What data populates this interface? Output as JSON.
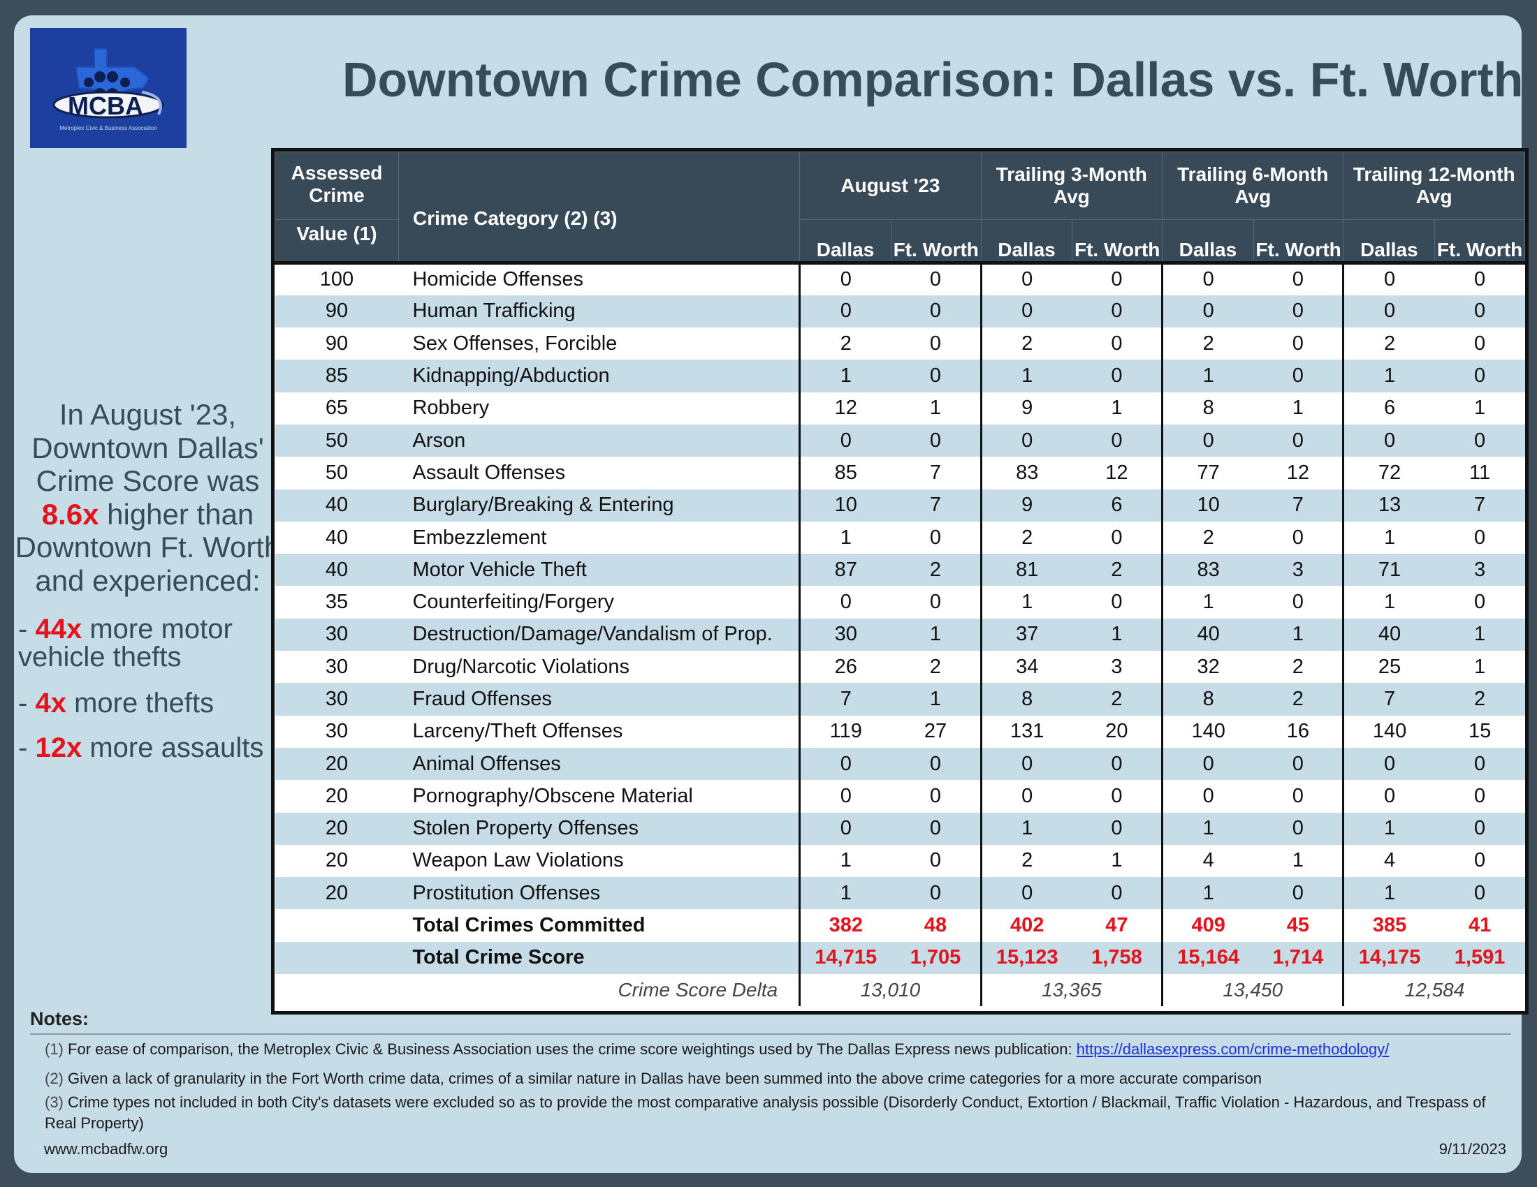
{
  "logo": {
    "text": "MCBA",
    "tagline": "Metroplex Civic & Business Association"
  },
  "title": "Downtown Crime Comparison: Dallas vs. Ft. Worth",
  "callout": {
    "lead_pre": "In August '23, Downtown Dallas' Crime Score was",
    "lead_multiplier": "8.6x",
    "lead_post": "higher than Downtown Ft. Worth and experienced:",
    "bullets": [
      {
        "dash": "-",
        "mult": "44x",
        "text": "more motor vehicle thefts"
      },
      {
        "dash": "-",
        "mult": "4x",
        "text": "more thefts"
      },
      {
        "dash": "-",
        "mult": "12x",
        "text": "more assaults"
      }
    ]
  },
  "table": {
    "head": {
      "value_top": "Assessed Crime",
      "value_bottom": "Value (1)",
      "category": "Crime Category (2) (3)",
      "periods": [
        "August '23",
        "Trailing 3-Month Avg",
        "Trailing 6-Month Avg",
        "Trailing 12-Month Avg"
      ],
      "dallas": "Dallas",
      "ftworth": "Ft. Worth"
    },
    "rows": [
      {
        "value": "100",
        "category": "Homicide Offenses",
        "cells": [
          "0",
          "0",
          "0",
          "0",
          "0",
          "0",
          "0",
          "0"
        ]
      },
      {
        "value": "90",
        "category": "Human Trafficking",
        "cells": [
          "0",
          "0",
          "0",
          "0",
          "0",
          "0",
          "0",
          "0"
        ]
      },
      {
        "value": "90",
        "category": "Sex Offenses, Forcible",
        "cells": [
          "2",
          "0",
          "2",
          "0",
          "2",
          "0",
          "2",
          "0"
        ]
      },
      {
        "value": "85",
        "category": "Kidnapping/Abduction",
        "cells": [
          "1",
          "0",
          "1",
          "0",
          "1",
          "0",
          "1",
          "0"
        ]
      },
      {
        "value": "65",
        "category": "Robbery",
        "cells": [
          "12",
          "1",
          "9",
          "1",
          "8",
          "1",
          "6",
          "1"
        ]
      },
      {
        "value": "50",
        "category": "Arson",
        "cells": [
          "0",
          "0",
          "0",
          "0",
          "0",
          "0",
          "0",
          "0"
        ]
      },
      {
        "value": "50",
        "category": "Assault Offenses",
        "cells": [
          "85",
          "7",
          "83",
          "12",
          "77",
          "12",
          "72",
          "11"
        ]
      },
      {
        "value": "40",
        "category": "Burglary/Breaking & Entering",
        "cells": [
          "10",
          "7",
          "9",
          "6",
          "10",
          "7",
          "13",
          "7"
        ]
      },
      {
        "value": "40",
        "category": "Embezzlement",
        "cells": [
          "1",
          "0",
          "2",
          "0",
          "2",
          "0",
          "1",
          "0"
        ]
      },
      {
        "value": "40",
        "category": "Motor Vehicle Theft",
        "cells": [
          "87",
          "2",
          "81",
          "2",
          "83",
          "3",
          "71",
          "3"
        ]
      },
      {
        "value": "35",
        "category": "Counterfeiting/Forgery",
        "cells": [
          "0",
          "0",
          "1",
          "0",
          "1",
          "0",
          "1",
          "0"
        ]
      },
      {
        "value": "30",
        "category": "Destruction/Damage/Vandalism of Prop.",
        "cells": [
          "30",
          "1",
          "37",
          "1",
          "40",
          "1",
          "40",
          "1"
        ]
      },
      {
        "value": "30",
        "category": "Drug/Narcotic Violations",
        "cells": [
          "26",
          "2",
          "34",
          "3",
          "32",
          "2",
          "25",
          "1"
        ]
      },
      {
        "value": "30",
        "category": "Fraud Offenses",
        "cells": [
          "7",
          "1",
          "8",
          "2",
          "8",
          "2",
          "7",
          "2"
        ]
      },
      {
        "value": "30",
        "category": "Larceny/Theft Offenses",
        "cells": [
          "119",
          "27",
          "131",
          "20",
          "140",
          "16",
          "140",
          "15"
        ]
      },
      {
        "value": "20",
        "category": "Animal Offenses",
        "cells": [
          "0",
          "0",
          "0",
          "0",
          "0",
          "0",
          "0",
          "0"
        ]
      },
      {
        "value": "20",
        "category": "Pornography/Obscene Material",
        "cells": [
          "0",
          "0",
          "0",
          "0",
          "0",
          "0",
          "0",
          "0"
        ]
      },
      {
        "value": "20",
        "category": "Stolen Property Offenses",
        "cells": [
          "0",
          "0",
          "1",
          "0",
          "1",
          "0",
          "1",
          "0"
        ]
      },
      {
        "value": "20",
        "category": "Weapon Law Violations",
        "cells": [
          "1",
          "0",
          "2",
          "1",
          "4",
          "1",
          "4",
          "0"
        ]
      },
      {
        "value": "20",
        "category": "Prostitution Offenses",
        "cells": [
          "1",
          "0",
          "0",
          "0",
          "1",
          "0",
          "1",
          "0"
        ]
      }
    ],
    "totals": [
      {
        "label": "Total Crimes Committed",
        "cells": [
          "382",
          "48",
          "402",
          "47",
          "409",
          "45",
          "385",
          "41"
        ]
      },
      {
        "label": "Total Crime Score",
        "cells": [
          "14,715",
          "1,705",
          "15,123",
          "1,758",
          "15,164",
          "1,714",
          "14,175",
          "1,591"
        ]
      }
    ],
    "delta": {
      "label": "Crime Score Delta",
      "cells": [
        "13,010",
        "13,365",
        "13,450",
        "12,584"
      ]
    }
  },
  "notes": {
    "title": "Notes:",
    "n1_num": "(1)",
    "n1_text": "For ease of comparison, the Metroplex Civic & Business Association uses the crime score weightings used by The Dallas Express news publication:",
    "n1_link": "https://dallasexpress.com/crime-methodology/",
    "n2_num": "(2)",
    "n2_text": "Given a lack of granularity in the Fort Worth crime data, crimes of a similar nature in Dallas have been summed into the above crime categories for a more accurate comparison",
    "n3_num": "(3)",
    "n3_text": "Crime types not included in both City's datasets were excluded so as to provide the most comparative analysis possible (Disorderly Conduct, Extortion / Blackmail, Traffic Violation - Hazardous, and Trespass of Real Property)"
  },
  "footer": {
    "website": "www.mcbadfw.org",
    "date": "9/11/2023"
  },
  "colors": {
    "background": "#3d4d5a",
    "card": "#c6dce7",
    "header": "#384a57",
    "accent_red": "#e3141b",
    "title": "#374b59"
  }
}
